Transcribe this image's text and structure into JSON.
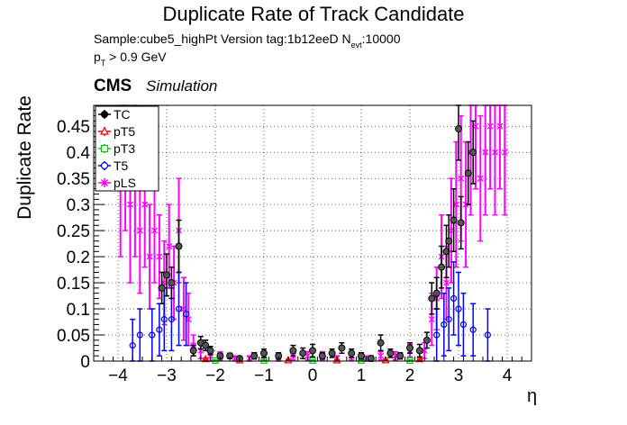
{
  "header": {
    "title": "Duplicate Rate of Track Candidate",
    "sample_line": "Sample:cube5_highPt   Version tag:1b12eeD  N",
    "nevt_sub": "evt",
    "nevt_value": ":10000",
    "pt_p": "p",
    "pt_sub": "T",
    "pt_cut": " > 0.9 GeV",
    "cms": "CMS",
    "simulation": "Simulation"
  },
  "chart_data": {
    "type": "scatter",
    "title": "Duplicate Rate of Track Candidate",
    "xlabel": "η",
    "ylabel": "Duplicate Rate",
    "xlim": [
      -4.5,
      4.5
    ],
    "ylim": [
      0,
      0.49
    ],
    "x_ticks": [
      "−4",
      "−3",
      "−2",
      "−1",
      "0",
      "1",
      "2",
      "3",
      "4"
    ],
    "x_tick_values": [
      -4,
      -3,
      -2,
      -1,
      0,
      1,
      2,
      3,
      4
    ],
    "y_ticks": [
      "0",
      "0.05",
      "0.1",
      "0.15",
      "0.2",
      "0.25",
      "0.3",
      "0.35",
      "0.4",
      "0.45"
    ],
    "y_tick_values": [
      0,
      0.05,
      0.1,
      0.15,
      0.2,
      0.25,
      0.3,
      0.35,
      0.4,
      0.45
    ],
    "grid": true,
    "legend_position": "top-left",
    "colors": {
      "TC": "#000000",
      "pT5": "#ff0000",
      "pT3": "#00cc00",
      "T5": "#0000ff",
      "pLS": "#ff00ff"
    },
    "series": [
      {
        "name": "TC",
        "x": [
          -3.1,
          -3.0,
          -2.9,
          -2.75,
          -2.45,
          -2.3,
          -2.2,
          -2.1,
          -1.9,
          -1.7,
          -1.5,
          -1.2,
          -1.0,
          -0.7,
          -0.4,
          -0.2,
          0.0,
          0.2,
          0.4,
          0.6,
          0.8,
          1.0,
          1.2,
          1.4,
          1.6,
          1.8,
          2.0,
          2.2,
          2.35,
          2.45,
          2.55,
          2.65,
          2.75,
          2.8,
          2.9,
          3.0,
          3.05,
          3.2,
          3.3
        ],
        "y": [
          0.14,
          0.165,
          0.15,
          0.22,
          0.02,
          0.035,
          0.03,
          0.02,
          0.01,
          0.01,
          0.005,
          0.01,
          0.015,
          0.01,
          0.02,
          0.015,
          0.02,
          0.01,
          0.015,
          0.025,
          0.015,
          0.01,
          0.005,
          0.035,
          0.015,
          0.01,
          0.025,
          0.02,
          0.04,
          0.12,
          0.13,
          0.18,
          0.21,
          0.23,
          0.27,
          0.445,
          0.265,
          0.36,
          0.4
        ],
        "err": [
          0.03,
          0.04,
          0.03,
          0.05,
          0.01,
          0.012,
          0.01,
          0.008,
          0.005,
          0.005,
          0.004,
          0.006,
          0.008,
          0.006,
          0.01,
          0.01,
          0.012,
          0.006,
          0.008,
          0.01,
          0.008,
          0.006,
          0.005,
          0.015,
          0.008,
          0.006,
          0.01,
          0.012,
          0.015,
          0.03,
          0.03,
          0.04,
          0.05,
          0.05,
          0.06,
          0.06,
          0.05,
          0.06,
          0.06
        ]
      },
      {
        "name": "pT5",
        "x": [
          -2.2,
          -1.5,
          -0.5,
          0.5,
          1.5,
          2.2
        ],
        "y": [
          0.004,
          0.002,
          0.002,
          0.002,
          0.002,
          0.004
        ],
        "err": [
          0.002,
          0.001,
          0.001,
          0.001,
          0.001,
          0.002
        ]
      },
      {
        "name": "pT3",
        "x": [
          -2.0,
          -1.0,
          0.0,
          1.0,
          2.0
        ],
        "y": [
          0.001,
          0.001,
          0.001,
          0.001,
          0.001
        ],
        "err": [
          0.001,
          0.001,
          0.001,
          0.001,
          0.001
        ]
      },
      {
        "name": "T5",
        "x": [
          -3.7,
          -3.55,
          -3.3,
          -3.15,
          -3.05,
          -2.9,
          -2.75,
          -2.6,
          2.55,
          2.7,
          2.8,
          2.9,
          3.0,
          3.1,
          3.3,
          3.6
        ],
        "y": [
          0.03,
          0.05,
          0.05,
          0.06,
          0.08,
          0.08,
          0.1,
          0.09,
          0.05,
          0.07,
          0.08,
          0.12,
          0.1,
          0.07,
          0.06,
          0.05
        ],
        "err": [
          0.05,
          0.05,
          0.05,
          0.05,
          0.06,
          0.06,
          0.07,
          0.06,
          0.05,
          0.06,
          0.06,
          0.07,
          0.07,
          0.06,
          0.05,
          0.05
        ]
      },
      {
        "name": "pLS",
        "x": [
          -3.95,
          -3.85,
          -3.75,
          -3.65,
          -3.55,
          -3.45,
          -3.35,
          -3.25,
          -3.15,
          -3.05,
          -2.95,
          -2.85,
          -2.75,
          -2.65,
          -2.55,
          -2.45,
          -2.3,
          -2.1,
          -1.9,
          -1.6,
          -1.3,
          -1.0,
          -0.7,
          -0.4,
          -0.1,
          0.2,
          0.5,
          0.8,
          1.1,
          1.4,
          1.7,
          2.0,
          2.3,
          2.45,
          2.55,
          2.65,
          2.75,
          2.85,
          2.95,
          3.05,
          3.15,
          3.25,
          3.35,
          3.45,
          3.55,
          3.65,
          3.75,
          3.85,
          3.95
        ],
        "y": [
          0.35,
          0.4,
          0.3,
          0.35,
          0.25,
          0.3,
          0.2,
          0.25,
          0.2,
          0.15,
          0.22,
          0.15,
          0.25,
          0.1,
          0.08,
          0.03,
          0.02,
          0.01,
          0.01,
          0.005,
          0.005,
          0.01,
          0.005,
          0.01,
          0.01,
          0.01,
          0.005,
          0.01,
          0.005,
          0.01,
          0.01,
          0.02,
          0.02,
          0.08,
          0.12,
          0.2,
          0.15,
          0.25,
          0.3,
          0.35,
          0.3,
          0.4,
          0.45,
          0.35,
          0.4,
          0.45,
          0.4,
          0.45,
          0.4
        ],
        "err": [
          0.15,
          0.15,
          0.15,
          0.15,
          0.12,
          0.12,
          0.1,
          0.1,
          0.08,
          0.08,
          0.08,
          0.07,
          0.1,
          0.06,
          0.05,
          0.02,
          0.015,
          0.01,
          0.008,
          0.005,
          0.005,
          0.008,
          0.005,
          0.008,
          0.008,
          0.008,
          0.005,
          0.008,
          0.005,
          0.008,
          0.008,
          0.012,
          0.015,
          0.05,
          0.06,
          0.08,
          0.07,
          0.1,
          0.12,
          0.12,
          0.12,
          0.12,
          0.12,
          0.12,
          0.12,
          0.12,
          0.12,
          0.12,
          0.12
        ]
      }
    ]
  }
}
